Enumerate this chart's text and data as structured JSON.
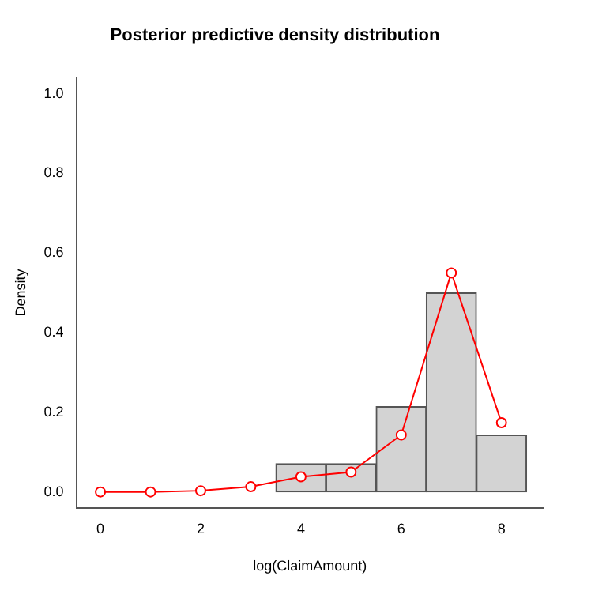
{
  "chart_data": {
    "type": "histogram",
    "title": "Posterior predictive density distribution",
    "xlabel": "log(ClaimAmount)",
    "ylabel": "Density",
    "series": [
      {
        "bins": [
          3.5,
          4.5,
          5.5,
          6.5,
          7.5,
          8.5
        ],
        "values": [
          0.071,
          0.071,
          0.214,
          0.5,
          0.143
        ],
        "color": "#d3d3d3"
      },
      {
        "type": "line",
        "x": [
          0,
          1,
          2,
          3,
          4,
          5,
          6,
          7,
          8
        ],
        "values": [
          0,
          0,
          0.003,
          0.013,
          0.038,
          0.05,
          0.143,
          0.55,
          0.174
        ],
        "color": "#ff0000",
        "marker": "circle"
      }
    ],
    "xlim": [
      -0.48,
      8.84
    ],
    "ylim": [
      -0.04,
      1.04
    ],
    "xticks": [
      0,
      2,
      4,
      6,
      8
    ],
    "yticks": [
      {
        "value": 0,
        "label": "0.0"
      },
      {
        "value": 0.2,
        "label": "0.2"
      },
      {
        "value": 0.4,
        "label": "0.4"
      },
      {
        "value": 0.6,
        "label": "0.6"
      },
      {
        "value": 0.8,
        "label": "0.8"
      },
      {
        "value": 1,
        "label": "1.0"
      }
    ],
    "grid": false,
    "legend": false
  }
}
